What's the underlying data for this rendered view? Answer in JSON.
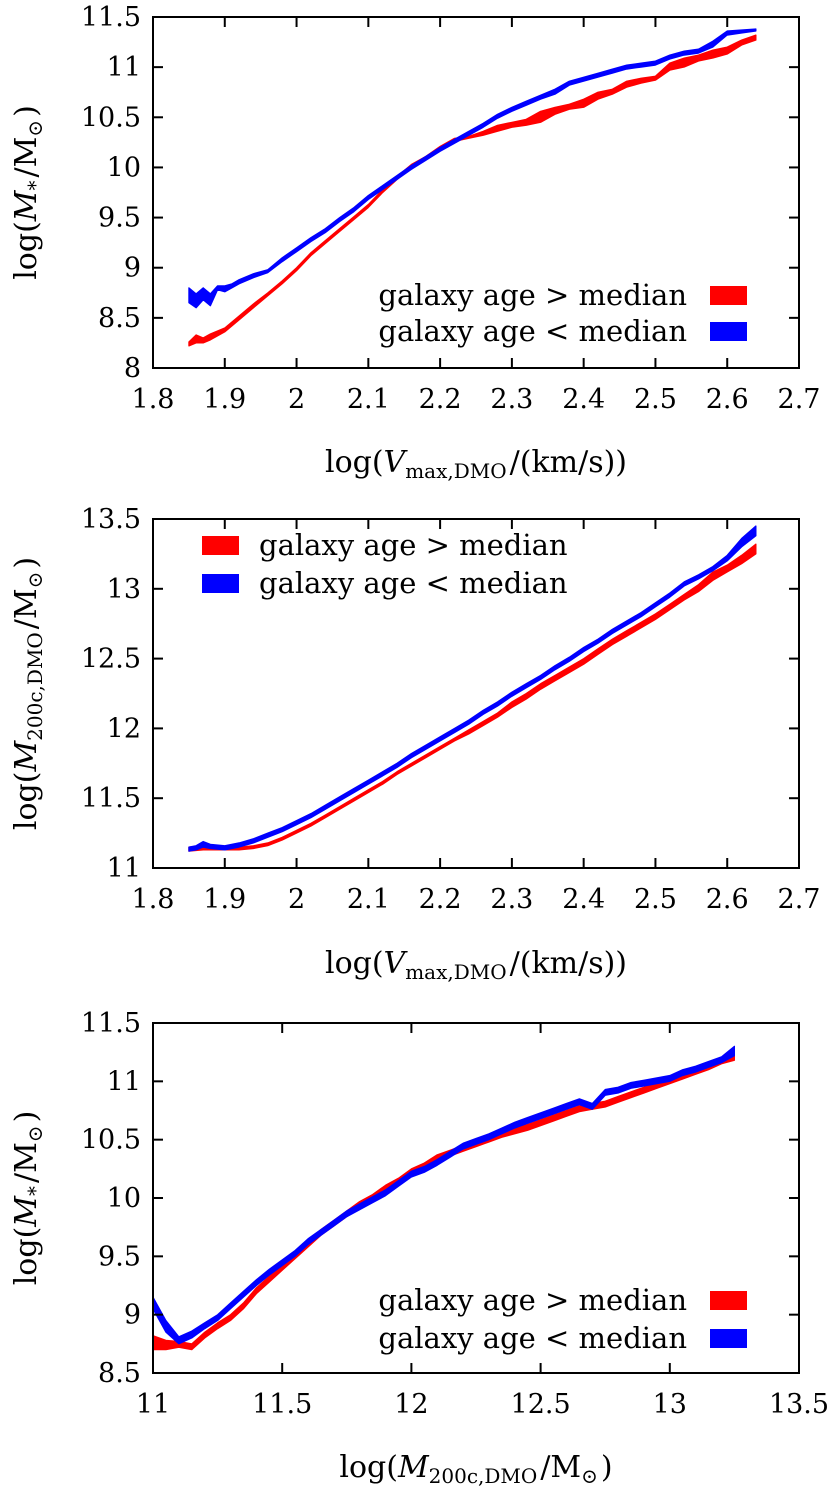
{
  "chart_data": [
    {
      "type": "line",
      "xlabel": "log(V_max,DMO/(km/s))",
      "ylabel": "log(M_*/M_⊙)",
      "xlim": [
        1.8,
        2.7
      ],
      "ylim": [
        8,
        11.5
      ],
      "xticks": [
        "1.8",
        "1.9",
        "2",
        "2.1",
        "2.2",
        "2.3",
        "2.4",
        "2.5",
        "2.6",
        "2.7"
      ],
      "yticks": [
        "8",
        "8.5",
        "9",
        "9.5",
        "10",
        "10.5",
        "11",
        "11.5"
      ],
      "legend_position": "bottom-right",
      "grid": false,
      "series": [
        {
          "name": "galaxy age > median",
          "color": "#ff0000",
          "x": [
            1.85,
            1.86,
            1.87,
            1.88,
            1.9,
            1.92,
            1.94,
            1.96,
            1.98,
            2.0,
            2.02,
            2.04,
            2.06,
            2.08,
            2.1,
            2.12,
            2.14,
            2.16,
            2.18,
            2.2,
            2.22,
            2.24,
            2.26,
            2.28,
            2.3,
            2.32,
            2.34,
            2.36,
            2.38,
            2.4,
            2.42,
            2.44,
            2.46,
            2.48,
            2.5,
            2.52,
            2.54,
            2.56,
            2.58,
            2.6,
            2.62,
            2.64
          ],
          "lower": [
            8.22,
            8.25,
            8.25,
            8.28,
            8.36,
            8.48,
            8.6,
            8.72,
            8.84,
            8.97,
            9.12,
            9.24,
            9.36,
            9.48,
            9.6,
            9.75,
            9.88,
            10.0,
            10.08,
            10.18,
            10.26,
            10.29,
            10.32,
            10.36,
            10.4,
            10.42,
            10.45,
            10.53,
            10.58,
            10.6,
            10.68,
            10.73,
            10.8,
            10.84,
            10.87,
            10.97,
            11.0,
            11.06,
            11.09,
            11.13,
            11.22,
            11.27
          ],
          "upper": [
            8.26,
            8.33,
            8.3,
            8.34,
            8.4,
            8.52,
            8.64,
            8.75,
            8.87,
            9.0,
            9.15,
            9.27,
            9.39,
            9.51,
            9.63,
            9.78,
            9.91,
            10.03,
            10.11,
            10.21,
            10.29,
            10.31,
            10.36,
            10.42,
            10.45,
            10.48,
            10.56,
            10.6,
            10.63,
            10.68,
            10.75,
            10.78,
            10.86,
            10.89,
            10.91,
            11.04,
            11.09,
            11.12,
            11.17,
            11.2,
            11.27,
            11.32
          ]
        },
        {
          "name": "galaxy age < median",
          "color": "#0000ff",
          "x": [
            1.85,
            1.86,
            1.87,
            1.88,
            1.89,
            1.9,
            1.91,
            1.92,
            1.94,
            1.96,
            1.98,
            2.0,
            2.02,
            2.04,
            2.06,
            2.08,
            2.1,
            2.12,
            2.14,
            2.16,
            2.18,
            2.2,
            2.22,
            2.24,
            2.26,
            2.28,
            2.3,
            2.32,
            2.34,
            2.36,
            2.38,
            2.4,
            2.42,
            2.44,
            2.46,
            2.48,
            2.5,
            2.52,
            2.54,
            2.56,
            2.58,
            2.6,
            2.62,
            2.64
          ],
          "lower": [
            8.65,
            8.6,
            8.68,
            8.62,
            8.78,
            8.76,
            8.8,
            8.84,
            8.9,
            8.95,
            9.06,
            9.16,
            9.26,
            9.35,
            9.46,
            9.56,
            9.68,
            9.78,
            9.88,
            9.98,
            10.07,
            10.16,
            10.24,
            10.32,
            10.4,
            10.49,
            10.56,
            10.62,
            10.68,
            10.73,
            10.82,
            10.86,
            10.9,
            10.94,
            10.98,
            11.0,
            11.02,
            11.08,
            11.12,
            11.14,
            11.2,
            11.32,
            11.34,
            11.36
          ],
          "upper": [
            8.8,
            8.74,
            8.8,
            8.74,
            8.82,
            8.82,
            8.84,
            8.88,
            8.94,
            8.98,
            9.1,
            9.2,
            9.3,
            9.39,
            9.5,
            9.6,
            9.72,
            9.82,
            9.92,
            10.02,
            10.11,
            10.2,
            10.28,
            10.36,
            10.44,
            10.53,
            10.6,
            10.66,
            10.72,
            10.78,
            10.86,
            10.9,
            10.94,
            10.98,
            11.02,
            11.04,
            11.06,
            11.12,
            11.16,
            11.18,
            11.26,
            11.36,
            11.37,
            11.38
          ]
        }
      ]
    },
    {
      "type": "line",
      "xlabel": "log(V_max,DMO/(km/s))",
      "ylabel": "log(M_200c,DMO/M_⊙)",
      "xlim": [
        1.8,
        2.7
      ],
      "ylim": [
        11,
        13.5
      ],
      "xticks": [
        "1.8",
        "1.9",
        "2",
        "2.1",
        "2.2",
        "2.3",
        "2.4",
        "2.5",
        "2.6",
        "2.7"
      ],
      "yticks": [
        "11",
        "11.5",
        "12",
        "12.5",
        "13",
        "13.5"
      ],
      "legend_position": "top-left",
      "grid": false,
      "series": [
        {
          "name": "galaxy age > median",
          "color": "#ff0000",
          "x": [
            1.85,
            1.87,
            1.9,
            1.92,
            1.94,
            1.96,
            1.98,
            2.0,
            2.02,
            2.04,
            2.06,
            2.08,
            2.1,
            2.12,
            2.14,
            2.16,
            2.18,
            2.2,
            2.22,
            2.24,
            2.26,
            2.28,
            2.3,
            2.32,
            2.34,
            2.36,
            2.38,
            2.4,
            2.42,
            2.44,
            2.46,
            2.48,
            2.5,
            2.52,
            2.54,
            2.56,
            2.58,
            2.6,
            2.62,
            2.64
          ],
          "lower": [
            11.12,
            11.13,
            11.13,
            11.13,
            11.14,
            11.16,
            11.2,
            11.25,
            11.3,
            11.36,
            11.42,
            11.48,
            11.54,
            11.6,
            11.67,
            11.73,
            11.79,
            11.85,
            11.91,
            11.96,
            12.02,
            12.08,
            12.15,
            12.21,
            12.28,
            12.34,
            12.4,
            12.46,
            12.53,
            12.6,
            12.66,
            12.72,
            12.78,
            12.85,
            12.92,
            12.98,
            13.06,
            13.12,
            13.18,
            13.25
          ],
          "upper": [
            11.15,
            11.16,
            11.15,
            11.15,
            11.16,
            11.18,
            11.22,
            11.27,
            11.32,
            11.38,
            11.44,
            11.5,
            11.56,
            11.62,
            11.69,
            11.75,
            11.81,
            11.87,
            11.93,
            11.99,
            12.05,
            12.11,
            12.19,
            12.25,
            12.32,
            12.38,
            12.44,
            12.5,
            12.57,
            12.64,
            12.7,
            12.76,
            12.82,
            12.89,
            12.96,
            13.03,
            13.12,
            13.17,
            13.24,
            13.32
          ]
        },
        {
          "name": "galaxy age < median",
          "color": "#0000ff",
          "x": [
            1.85,
            1.86,
            1.87,
            1.88,
            1.9,
            1.92,
            1.94,
            1.96,
            1.98,
            2.0,
            2.02,
            2.04,
            2.06,
            2.08,
            2.1,
            2.12,
            2.14,
            2.16,
            2.18,
            2.2,
            2.22,
            2.24,
            2.26,
            2.28,
            2.3,
            2.32,
            2.34,
            2.36,
            2.38,
            2.4,
            2.42,
            2.44,
            2.46,
            2.48,
            2.5,
            2.52,
            2.54,
            2.56,
            2.58,
            2.6,
            2.62,
            2.64
          ],
          "lower": [
            11.12,
            11.13,
            11.15,
            11.14,
            11.13,
            11.15,
            11.18,
            11.22,
            11.26,
            11.31,
            11.36,
            11.42,
            11.48,
            11.54,
            11.6,
            11.66,
            11.72,
            11.79,
            11.85,
            11.91,
            11.97,
            12.03,
            12.1,
            12.16,
            12.23,
            12.29,
            12.35,
            12.42,
            12.48,
            12.55,
            12.61,
            12.68,
            12.74,
            12.8,
            12.87,
            12.94,
            13.02,
            13.07,
            13.13,
            13.2,
            13.3,
            13.38
          ],
          "upper": [
            11.15,
            11.16,
            11.19,
            11.17,
            11.16,
            11.18,
            11.21,
            11.25,
            11.29,
            11.34,
            11.39,
            11.45,
            11.51,
            11.57,
            11.63,
            11.69,
            11.75,
            11.82,
            11.88,
            11.94,
            12.0,
            12.06,
            12.13,
            12.19,
            12.26,
            12.32,
            12.38,
            12.45,
            12.51,
            12.58,
            12.64,
            12.71,
            12.77,
            12.83,
            12.9,
            12.97,
            13.05,
            13.1,
            13.16,
            13.24,
            13.36,
            13.45
          ]
        }
      ]
    },
    {
      "type": "line",
      "xlabel": "log(M_200c,DMO/M_⊙)",
      "ylabel": "log(M_*/M_⊙)",
      "xlim": [
        11,
        13.5
      ],
      "ylim": [
        8.5,
        11.5
      ],
      "xticks": [
        "11",
        "11.5",
        "12",
        "12.5",
        "13",
        "13.5"
      ],
      "yticks": [
        "8.5",
        "9",
        "9.5",
        "10",
        "10.5",
        "11",
        "11.5"
      ],
      "legend_position": "bottom-right",
      "grid": false,
      "series": [
        {
          "name": "galaxy age > median",
          "color": "#ff0000",
          "x": [
            11.0,
            11.05,
            11.1,
            11.15,
            11.2,
            11.25,
            11.3,
            11.35,
            11.4,
            11.45,
            11.5,
            11.55,
            11.6,
            11.65,
            11.7,
            11.75,
            11.8,
            11.85,
            11.9,
            11.95,
            12.0,
            12.05,
            12.1,
            12.15,
            12.2,
            12.25,
            12.3,
            12.35,
            12.4,
            12.45,
            12.5,
            12.55,
            12.6,
            12.65,
            12.7,
            12.75,
            12.8,
            12.85,
            12.9,
            12.95,
            13.0,
            13.05,
            13.1,
            13.15,
            13.2,
            13.25
          ],
          "lower": [
            8.7,
            8.7,
            8.72,
            8.7,
            8.8,
            8.88,
            8.95,
            9.05,
            9.18,
            9.28,
            9.38,
            9.48,
            9.58,
            9.68,
            9.76,
            9.84,
            9.92,
            9.98,
            10.06,
            10.12,
            10.2,
            10.25,
            10.32,
            10.36,
            10.4,
            10.44,
            10.48,
            10.52,
            10.55,
            10.58,
            10.62,
            10.66,
            10.7,
            10.74,
            10.76,
            10.78,
            10.82,
            10.86,
            10.9,
            10.94,
            10.98,
            11.02,
            11.06,
            11.1,
            11.15,
            11.18
          ],
          "upper": [
            8.82,
            8.78,
            8.77,
            8.75,
            8.85,
            8.93,
            9.0,
            9.1,
            9.23,
            9.33,
            9.43,
            9.53,
            9.63,
            9.73,
            9.81,
            9.89,
            9.97,
            10.03,
            10.11,
            10.17,
            10.25,
            10.3,
            10.37,
            10.41,
            10.45,
            10.49,
            10.53,
            10.57,
            10.6,
            10.63,
            10.67,
            10.71,
            10.75,
            10.79,
            10.81,
            10.83,
            10.87,
            10.91,
            10.95,
            10.99,
            11.03,
            11.07,
            11.11,
            11.15,
            11.2,
            11.23
          ]
        },
        {
          "name": "galaxy age < median",
          "color": "#0000ff",
          "x": [
            11.0,
            11.05,
            11.1,
            11.15,
            11.2,
            11.25,
            11.3,
            11.35,
            11.4,
            11.45,
            11.5,
            11.55,
            11.6,
            11.65,
            11.7,
            11.75,
            11.8,
            11.85,
            11.9,
            11.95,
            12.0,
            12.05,
            12.1,
            12.15,
            12.2,
            12.25,
            12.3,
            12.35,
            12.4,
            12.45,
            12.5,
            12.55,
            12.6,
            12.65,
            12.7,
            12.75,
            12.8,
            12.85,
            12.9,
            12.95,
            13.0,
            13.05,
            13.1,
            13.15,
            13.2,
            13.25
          ],
          "lower": [
            9.05,
            8.85,
            8.75,
            8.8,
            8.88,
            8.95,
            9.05,
            9.15,
            9.25,
            9.34,
            9.42,
            9.5,
            9.6,
            9.68,
            9.76,
            9.84,
            9.9,
            9.96,
            10.02,
            10.1,
            10.18,
            10.22,
            10.28,
            10.35,
            10.42,
            10.46,
            10.5,
            10.55,
            10.6,
            10.64,
            10.68,
            10.72,
            10.76,
            10.8,
            10.76,
            10.88,
            10.9,
            10.94,
            10.96,
            10.98,
            11.0,
            11.05,
            11.08,
            11.12,
            11.16,
            11.22
          ],
          "upper": [
            9.15,
            8.95,
            8.81,
            8.86,
            8.93,
            9.0,
            9.1,
            9.2,
            9.3,
            9.39,
            9.47,
            9.55,
            9.65,
            9.73,
            9.81,
            9.89,
            9.95,
            10.01,
            10.07,
            10.15,
            10.23,
            10.27,
            10.33,
            10.4,
            10.47,
            10.51,
            10.55,
            10.6,
            10.65,
            10.69,
            10.73,
            10.77,
            10.81,
            10.85,
            10.81,
            10.93,
            10.95,
            10.99,
            11.01,
            11.03,
            11.05,
            11.1,
            11.13,
            11.17,
            11.21,
            11.3
          ]
        }
      ]
    }
  ]
}
